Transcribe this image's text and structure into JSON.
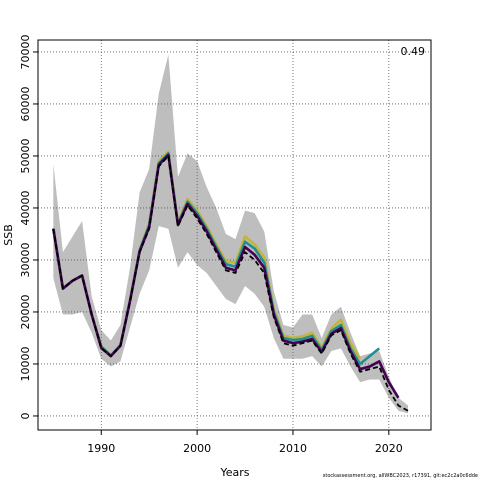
{
  "chart_data": {
    "type": "line",
    "ylabel": "SSB",
    "xlabel": "Years",
    "annotation": "0.49",
    "footer": "stockassessment.org, allWBC2023, r17391, git:ec2c2a0c6dde",
    "x": [
      1985,
      1986,
      1987,
      1988,
      1989,
      1990,
      1991,
      1992,
      1993,
      1994,
      1995,
      1996,
      1997,
      1998,
      1999,
      2000,
      2001,
      2002,
      2003,
      2004,
      2005,
      2006,
      2007,
      2008,
      2009,
      2010,
      2011,
      2012,
      2013,
      2014,
      2015,
      2016,
      2017,
      2018,
      2019,
      2020,
      2021,
      2022
    ],
    "xlim": [
      1983.4,
      2024.4
    ],
    "xticks": [
      1990,
      2000,
      2010,
      2020
    ],
    "ylim": [
      -2700,
      72300
    ],
    "yticks": [
      0,
      10000,
      20000,
      30000,
      40000,
      50000,
      60000,
      70000
    ],
    "grid": true,
    "band": {
      "color": "#bebebe",
      "upper": [
        48500,
        31500,
        34500,
        37500,
        23000,
        16500,
        14500,
        17500,
        28500,
        43000,
        47500,
        62000,
        69500,
        46000,
        50500,
        49000,
        44000,
        40000,
        35000,
        34000,
        39500,
        39000,
        35500,
        24000,
        17500,
        17000,
        19500,
        19500,
        15000,
        19500,
        21000,
        16000,
        11500,
        12000,
        12500,
        7500,
        3500,
        2000
      ],
      "lower": [
        26500,
        19500,
        19500,
        20000,
        16000,
        11000,
        9500,
        10500,
        17000,
        23500,
        28000,
        36500,
        36000,
        28500,
        31500,
        29000,
        27500,
        25000,
        22500,
        21500,
        25000,
        23500,
        21000,
        15000,
        11000,
        11000,
        11000,
        11500,
        9500,
        12500,
        13000,
        9500,
        6500,
        7000,
        7000,
        3500,
        1000,
        500
      ]
    },
    "series": [
      {
        "color": "#c2b43c",
        "values": [
          36000,
          24500,
          26000,
          27000,
          19500,
          13500,
          11700,
          13700,
          22300,
          32000,
          37000,
          49000,
          50800,
          37200,
          41700,
          39500,
          36500,
          33000,
          29800,
          29500,
          34500,
          33000,
          30500,
          20500,
          15500,
          15000,
          15300,
          16000,
          13200,
          16800,
          18500,
          14000,
          11000,
          null,
          null,
          null,
          null,
          null
        ]
      },
      {
        "color": "#21908c",
        "values": [
          36000,
          24500,
          26000,
          27000,
          19500,
          13300,
          11600,
          13600,
          22200,
          31800,
          36700,
          48600,
          50500,
          36900,
          41200,
          39000,
          36000,
          32500,
          29200,
          28700,
          33500,
          32200,
          29500,
          20000,
          15000,
          14600,
          14800,
          15400,
          12700,
          16300,
          17500,
          13000,
          10000,
          11500,
          13000,
          null,
          null,
          null
        ]
      },
      {
        "color": "#440154",
        "values": [
          36000,
          24500,
          26000,
          27000,
          19500,
          13100,
          11500,
          13500,
          22100,
          31600,
          36300,
          48300,
          50200,
          36700,
          40800,
          38500,
          35500,
          32000,
          28500,
          28000,
          32500,
          31000,
          28500,
          19500,
          14500,
          14000,
          14300,
          14800,
          12300,
          15800,
          16900,
          12500,
          9000,
          9500,
          10500,
          6500,
          3500,
          null
        ]
      },
      {
        "color": "#000000",
        "dash": true,
        "values": [
          36000,
          24500,
          26000,
          27000,
          19500,
          13000,
          11500,
          13500,
          22000,
          31500,
          36000,
          48000,
          50000,
          36500,
          40500,
          38000,
          35000,
          31500,
          28000,
          27500,
          31500,
          30000,
          27500,
          19000,
          14000,
          13500,
          14000,
          14500,
          12000,
          15500,
          16500,
          12000,
          8500,
          9000,
          9500,
          5000,
          2000,
          1000
        ]
      }
    ]
  }
}
